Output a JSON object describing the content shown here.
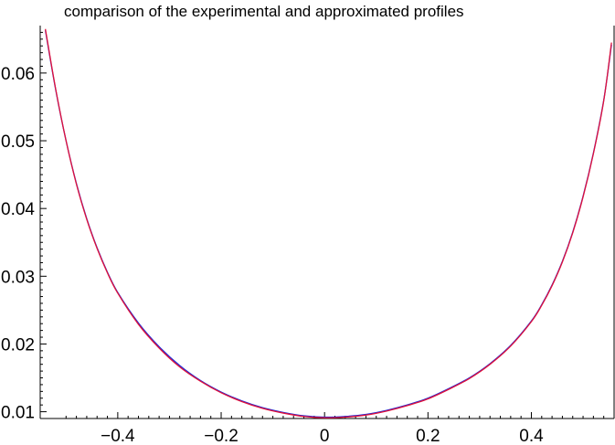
{
  "chart_data": {
    "type": "line",
    "title": "comparison of the experimental and approximated profiles",
    "xlabel": "",
    "ylabel": "",
    "xlim": [
      -0.55,
      0.56
    ],
    "ylim": [
      0.009,
      0.067
    ],
    "grid": false,
    "legend": "none",
    "x_ticks": [
      -0.4,
      -0.2,
      0,
      0.2,
      0.4
    ],
    "x_tick_labels": [
      "−0.4",
      "−0.2",
      "0",
      "0.2",
      "0.4"
    ],
    "y_ticks": [
      0.01,
      0.02,
      0.03,
      0.04,
      0.05,
      0.06
    ],
    "y_tick_labels": [
      "0.01",
      "0.02",
      "0.03",
      "0.04",
      "0.05",
      "0.06"
    ],
    "series": [
      {
        "color": "#1f2bd6",
        "x": [
          -0.54,
          -0.52,
          -0.5,
          -0.48,
          -0.46,
          -0.44,
          -0.42,
          -0.4,
          -0.36,
          -0.32,
          -0.28,
          -0.24,
          -0.2,
          -0.16,
          -0.12,
          -0.08,
          -0.04,
          0,
          0.04,
          0.08,
          0.12,
          0.16,
          0.2,
          0.24,
          0.28,
          0.32,
          0.36,
          0.4,
          0.42,
          0.44,
          0.46,
          0.48,
          0.5,
          0.52,
          0.54,
          0.555
        ],
        "y": [
          0.0663,
          0.0575,
          0.05,
          0.0437,
          0.0385,
          0.0342,
          0.0306,
          0.0276,
          0.0231,
          0.0196,
          0.0168,
          0.0146,
          0.0129,
          0.0116,
          0.0106,
          0.0099,
          0.0094,
          0.0092,
          0.0093,
          0.0096,
          0.0102,
          0.011,
          0.012,
          0.0134,
          0.015,
          0.0171,
          0.0198,
          0.0234,
          0.0258,
          0.0287,
          0.0322,
          0.0365,
          0.0418,
          0.0482,
          0.056,
          0.0642
        ]
      },
      {
        "color": "#e0103a",
        "x": [
          -0.54,
          -0.52,
          -0.5,
          -0.48,
          -0.46,
          -0.44,
          -0.42,
          -0.4,
          -0.36,
          -0.32,
          -0.28,
          -0.24,
          -0.2,
          -0.16,
          -0.12,
          -0.08,
          -0.04,
          0,
          0.04,
          0.08,
          0.12,
          0.16,
          0.2,
          0.24,
          0.28,
          0.32,
          0.36,
          0.4,
          0.42,
          0.44,
          0.46,
          0.48,
          0.5,
          0.52,
          0.54,
          0.555
        ],
        "y": [
          0.0665,
          0.0576,
          0.05,
          0.0436,
          0.0384,
          0.0341,
          0.0305,
          0.0275,
          0.0229,
          0.0194,
          0.0166,
          0.0145,
          0.0128,
          0.0115,
          0.0105,
          0.0098,
          0.0093,
          0.0091,
          0.0092,
          0.0095,
          0.0101,
          0.0109,
          0.0119,
          0.0133,
          0.0149,
          0.017,
          0.0197,
          0.0233,
          0.0257,
          0.0286,
          0.0321,
          0.0364,
          0.0417,
          0.0481,
          0.0559,
          0.0645
        ]
      }
    ]
  }
}
